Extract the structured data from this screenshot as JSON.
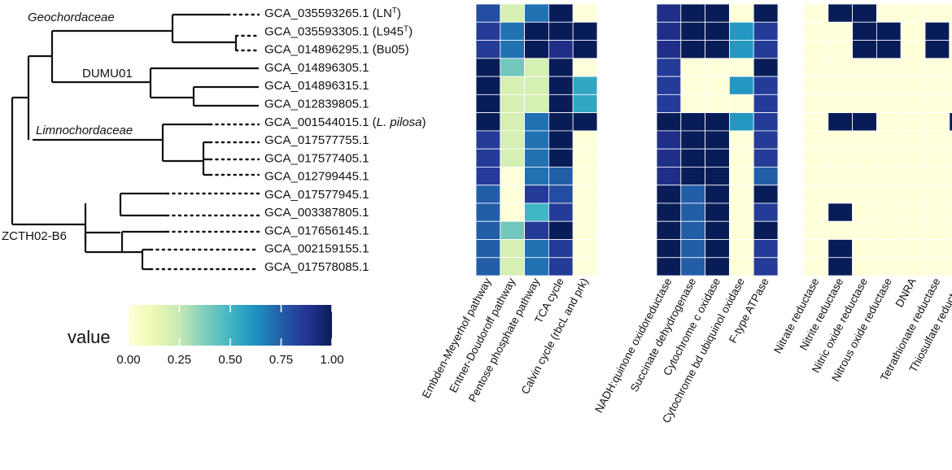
{
  "chart_data": {
    "type": "heatmap",
    "colorscale": {
      "name": "YlGnBu",
      "stops": [
        {
          "v": 0.0,
          "c": "#FFFFD9"
        },
        {
          "v": 0.125,
          "c": "#EDF8B1"
        },
        {
          "v": 0.25,
          "c": "#C7E9B4"
        },
        {
          "v": 0.375,
          "c": "#7FCDBB"
        },
        {
          "v": 0.5,
          "c": "#41B6C4"
        },
        {
          "v": 0.625,
          "c": "#1D91C0"
        },
        {
          "v": 0.75,
          "c": "#225EA8"
        },
        {
          "v": 0.875,
          "c": "#253494"
        },
        {
          "v": 1.0,
          "c": "#081D58"
        }
      ]
    },
    "legend": {
      "title": "value",
      "ticks": [
        "0.00",
        "0.25",
        "0.50",
        "0.75",
        "1.00"
      ],
      "tick_values": [
        0,
        0.25,
        0.5,
        0.75,
        1.0
      ],
      "placement": "bottom-left"
    },
    "rows": [
      {
        "id": "GCA_035593265.1",
        "label": "GCA_035593265.1 (LN",
        "sup": "T",
        "tail": ")"
      },
      {
        "id": "GCA_035593305.1",
        "label": "GCA_035593305.1 (L945",
        "sup": "T",
        "tail": ")"
      },
      {
        "id": "GCA_014896295.1",
        "label": "GCA_014896295.1 (Bu05)"
      },
      {
        "id": "GCA_014896305.1",
        "label": "GCA_014896305.1"
      },
      {
        "id": "GCA_014896315.1",
        "label": "GCA_014896315.1"
      },
      {
        "id": "GCA_012839805.1",
        "label": "GCA_012839805.1"
      },
      {
        "id": "GCA_001544015.1",
        "label": "GCA_001544015.1 (",
        "italic": "L. pilosa",
        "tail": ")"
      },
      {
        "id": "GCA_017577755.1",
        "label": "GCA_017577755.1"
      },
      {
        "id": "GCA_017577405.1",
        "label": "GCA_017577405.1"
      },
      {
        "id": "GCA_012799445.1",
        "label": "GCA_012799445.1"
      },
      {
        "id": "GCA_017577945.1",
        "label": "GCA_017577945.1"
      },
      {
        "id": "GCA_003387805.1",
        "label": "GCA_003387805.1"
      },
      {
        "id": "GCA_017656145.1",
        "label": "GCA_017656145.1"
      },
      {
        "id": "GCA_002159155.1",
        "label": "GCA_002159155.1"
      },
      {
        "id": "GCA_017578085.1",
        "label": "GCA_017578085.1"
      }
    ],
    "clades": [
      {
        "name": "Geochordaceae",
        "italic": true
      },
      {
        "name": "DUMU01",
        "italic": false
      },
      {
        "name": "Limnochordaceae",
        "italic": true
      },
      {
        "name": "ZCTH02-B6",
        "italic": false
      }
    ],
    "panels": [
      {
        "name": "carbon-metabolism",
        "columns": [
          "Embden-Meyerhof pathway",
          "Entner-Doudoroff pathway",
          "Pentose phosphate pathway",
          "TCA cycle",
          "Calvin cycle (rbcL and prk)"
        ],
        "values": [
          [
            0.8,
            0.2,
            0.7,
            1.0,
            0.0
          ],
          [
            0.85,
            0.7,
            1.0,
            1.0,
            1.0
          ],
          [
            0.85,
            0.7,
            1.0,
            0.9,
            1.0
          ],
          [
            1.0,
            0.4,
            0.2,
            1.0,
            0.0
          ],
          [
            1.0,
            0.2,
            0.2,
            1.0,
            0.55
          ],
          [
            1.0,
            0.2,
            0.2,
            1.0,
            0.55
          ],
          [
            1.0,
            0.2,
            0.7,
            1.0,
            1.0
          ],
          [
            0.85,
            0.2,
            0.7,
            1.0,
            0.0
          ],
          [
            0.85,
            0.2,
            0.7,
            1.0,
            0.0
          ],
          [
            0.85,
            0.0,
            0.7,
            0.75,
            0.0
          ],
          [
            0.75,
            0.0,
            0.85,
            0.8,
            0.0
          ],
          [
            0.75,
            0.0,
            0.5,
            0.85,
            0.0
          ],
          [
            0.75,
            0.4,
            0.85,
            1.0,
            0.0
          ],
          [
            0.75,
            0.2,
            0.7,
            0.85,
            0.0
          ],
          [
            0.75,
            0.2,
            0.7,
            0.85,
            0.0
          ]
        ]
      },
      {
        "name": "respiration",
        "columns": [
          "NADH:quinone oxidoreductase",
          "Succinate dehydrogenase",
          "Cytochrome c oxidase",
          "Cytochrome bd ubiquinol oxidase",
          "F-type ATPase"
        ],
        "values": [
          [
            0.9,
            1.0,
            1.0,
            0.0,
            1.0
          ],
          [
            0.9,
            1.0,
            1.0,
            0.6,
            0.85
          ],
          [
            0.9,
            1.0,
            1.0,
            0.6,
            0.85
          ],
          [
            0.85,
            0.0,
            0.0,
            0.0,
            1.0
          ],
          [
            0.85,
            0.0,
            0.0,
            0.6,
            0.85
          ],
          [
            0.85,
            0.0,
            0.0,
            0.0,
            0.85
          ],
          [
            1.0,
            1.0,
            1.0,
            0.6,
            0.85
          ],
          [
            0.9,
            1.0,
            1.0,
            0.0,
            0.85
          ],
          [
            0.9,
            1.0,
            1.0,
            0.0,
            0.85
          ],
          [
            0.9,
            1.0,
            1.0,
            0.0,
            0.75
          ],
          [
            1.0,
            0.75,
            1.0,
            0.0,
            1.0
          ],
          [
            1.0,
            0.75,
            1.0,
            0.0,
            0.85
          ],
          [
            1.0,
            0.75,
            1.0,
            0.0,
            1.0
          ],
          [
            1.0,
            0.75,
            1.0,
            0.0,
            0.85
          ],
          [
            1.0,
            0.75,
            1.0,
            0.0,
            0.85
          ]
        ]
      },
      {
        "name": "nitrogen-sulfur",
        "columns": [
          "Nitrate reductase",
          "Nitrite reductase",
          "Nitric oxide reductase",
          "Nitrous oxide reductase",
          "DNRA",
          "Tetrathionate reductase",
          "Thiosulfate reductase"
        ],
        "values": [
          [
            0,
            1,
            1,
            0,
            0,
            0,
            0
          ],
          [
            0,
            0,
            1,
            1,
            0,
            1,
            0
          ],
          [
            0,
            0,
            1,
            1,
            0,
            1,
            0
          ],
          [
            0,
            0,
            0,
            0,
            0,
            0,
            0
          ],
          [
            0,
            0,
            0,
            0,
            0,
            0,
            0
          ],
          [
            0,
            0,
            0,
            0,
            0,
            0,
            0
          ],
          [
            0,
            1,
            1,
            0,
            0,
            0,
            1
          ],
          [
            0,
            0,
            0,
            0,
            0,
            0,
            0
          ],
          [
            0,
            0,
            0,
            0,
            0,
            0,
            0
          ],
          [
            0,
            0,
            0,
            0,
            0,
            0,
            0
          ],
          [
            0,
            0,
            0,
            0,
            0,
            0,
            0
          ],
          [
            0,
            1,
            0,
            0,
            0,
            0,
            0
          ],
          [
            0,
            0,
            0,
            0,
            0,
            0,
            0
          ],
          [
            0,
            1,
            0,
            0,
            0,
            0,
            0
          ],
          [
            0,
            1,
            0,
            0,
            0,
            0,
            0
          ]
        ]
      }
    ]
  }
}
